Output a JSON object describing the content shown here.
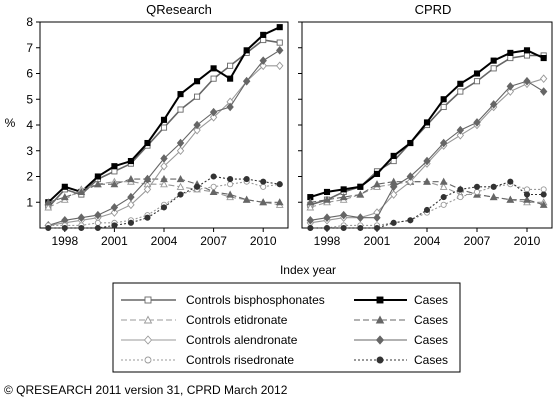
{
  "figure": {
    "ylabel": "%",
    "xlabel": "Index year",
    "copyright": "© QRESEARCH 2011 version 31, CPRD March 2012"
  },
  "legend": [
    {
      "key": "bis",
      "control": "Controls bisphosphonates",
      "case": "Cases"
    },
    {
      "key": "eti",
      "control": "Controls etidronate",
      "case": "Cases"
    },
    {
      "key": "alen",
      "control": "Controls alendronate",
      "case": "Cases"
    },
    {
      "key": "ris",
      "control": "Controls risedronate",
      "case": "Cases"
    }
  ],
  "series_styles": {
    "bis_control": {
      "color": "#666666",
      "dash": "",
      "marker": "square",
      "fill": "#ffffff"
    },
    "bis_case": {
      "color": "#000000",
      "dash": "",
      "marker": "square",
      "fill": "#000000"
    },
    "eti_control": {
      "color": "#999999",
      "dash": "6,3",
      "marker": "triangle",
      "fill": "#ffffff"
    },
    "eti_case": {
      "color": "#666666",
      "dash": "6,3",
      "marker": "triangle",
      "fill": "#666666"
    },
    "alen_control": {
      "color": "#999999",
      "dash": "",
      "marker": "diamond",
      "fill": "#ffffff"
    },
    "alen_case": {
      "color": "#666666",
      "dash": "",
      "marker": "diamond",
      "fill": "#666666"
    },
    "ris_control": {
      "color": "#999999",
      "dash": "2,2",
      "marker": "circle",
      "fill": "#ffffff"
    },
    "ris_case": {
      "color": "#333333",
      "dash": "2,2",
      "marker": "circle",
      "fill": "#333333"
    }
  },
  "chart_data": [
    {
      "type": "line",
      "title": "QResearch",
      "xlabel": "Index year",
      "ylabel": "%",
      "xlim": [
        1996.5,
        2011.5
      ],
      "ylim": [
        0,
        8
      ],
      "xticks": [
        1998,
        2001,
        2004,
        2007,
        2010
      ],
      "yticks": [
        1,
        2,
        3,
        4,
        5,
        6,
        7,
        8
      ],
      "x": [
        1997,
        1998,
        1999,
        2000,
        2001,
        2002,
        2003,
        2004,
        2005,
        2006,
        2007,
        2008,
        2009,
        2010,
        2011
      ],
      "series": [
        {
          "key": "bis_control",
          "values": [
            0.8,
            1.5,
            1.3,
            1.9,
            2.2,
            2.5,
            3.2,
            3.9,
            4.6,
            5.1,
            5.8,
            6.3,
            6.8,
            7.3,
            7.2
          ]
        },
        {
          "key": "bis_case",
          "values": [
            1.0,
            1.6,
            1.4,
            2.0,
            2.4,
            2.6,
            3.3,
            4.2,
            5.2,
            5.7,
            6.2,
            5.8,
            6.9,
            7.5,
            7.8
          ]
        },
        {
          "key": "eti_control",
          "values": [
            0.8,
            1.1,
            1.5,
            1.7,
            1.8,
            1.8,
            1.7,
            1.7,
            1.6,
            1.5,
            1.4,
            1.2,
            1.1,
            1.0,
            0.9
          ]
        },
        {
          "key": "eti_case",
          "values": [
            1.0,
            1.2,
            1.4,
            1.7,
            1.7,
            1.9,
            1.9,
            1.9,
            1.9,
            1.7,
            1.4,
            1.3,
            1.1,
            1.0,
            1.0
          ]
        },
        {
          "key": "alen_control",
          "values": [
            0.1,
            0.2,
            0.3,
            0.4,
            0.6,
            0.9,
            1.5,
            2.4,
            3.0,
            3.8,
            4.3,
            4.9,
            5.7,
            6.3,
            6.3
          ]
        },
        {
          "key": "alen_case",
          "values": [
            0.1,
            0.3,
            0.4,
            0.5,
            0.8,
            1.2,
            1.9,
            2.7,
            3.3,
            4.0,
            4.5,
            4.7,
            5.7,
            6.5,
            6.9
          ]
        },
        {
          "key": "ris_control",
          "values": [
            0.1,
            0.1,
            0.1,
            0.2,
            0.2,
            0.3,
            0.5,
            0.9,
            1.3,
            1.5,
            1.6,
            1.7,
            1.8,
            1.6,
            1.7
          ]
        },
        {
          "key": "ris_case",
          "values": [
            0.0,
            0.0,
            0.0,
            0.0,
            0.1,
            0.2,
            0.4,
            0.8,
            1.3,
            1.6,
            2.0,
            1.9,
            1.9,
            1.8,
            1.7
          ]
        }
      ]
    },
    {
      "type": "line",
      "title": "CPRD",
      "xlabel": "Index year",
      "ylabel": "%",
      "xlim": [
        1996.5,
        2011.5
      ],
      "ylim": [
        0,
        8
      ],
      "xticks": [
        1998,
        2001,
        2004,
        2007,
        2010
      ],
      "yticks": [
        1,
        2,
        3,
        4,
        5,
        6,
        7,
        8
      ],
      "x": [
        1997,
        1998,
        1999,
        2000,
        2001,
        2002,
        2003,
        2004,
        2005,
        2006,
        2007,
        2008,
        2009,
        2010,
        2011
      ],
      "series": [
        {
          "key": "bis_control",
          "values": [
            0.9,
            1.1,
            1.4,
            1.6,
            2.2,
            2.6,
            3.3,
            4.0,
            4.7,
            5.3,
            5.7,
            6.2,
            6.6,
            6.7,
            6.7
          ]
        },
        {
          "key": "bis_case",
          "values": [
            1.2,
            1.4,
            1.5,
            1.6,
            2.1,
            2.8,
            3.3,
            4.1,
            5.0,
            5.6,
            6.0,
            6.5,
            6.8,
            6.9,
            6.6
          ]
        },
        {
          "key": "eti_control",
          "values": [
            0.8,
            1.0,
            1.1,
            1.3,
            1.6,
            1.7,
            1.8,
            1.8,
            1.6,
            1.3,
            1.3,
            1.2,
            1.1,
            1.0,
            1.0
          ]
        },
        {
          "key": "eti_case",
          "values": [
            1.0,
            1.1,
            1.2,
            1.3,
            1.7,
            1.8,
            1.8,
            1.8,
            1.8,
            1.5,
            1.3,
            1.2,
            1.1,
            1.1,
            0.9
          ]
        },
        {
          "key": "alen_control",
          "values": [
            0.2,
            0.3,
            0.4,
            0.4,
            0.6,
            1.3,
            1.8,
            2.5,
            3.2,
            3.6,
            4.0,
            4.7,
            5.3,
            5.6,
            5.8
          ]
        },
        {
          "key": "alen_case",
          "values": [
            0.3,
            0.4,
            0.5,
            0.4,
            0.4,
            1.6,
            2.0,
            2.6,
            3.3,
            3.8,
            4.1,
            4.8,
            5.5,
            5.7,
            5.3
          ]
        },
        {
          "key": "ris_control",
          "values": [
            0.0,
            0.0,
            0.1,
            0.1,
            0.1,
            0.2,
            0.3,
            0.6,
            0.9,
            1.2,
            1.4,
            1.6,
            1.7,
            1.5,
            1.5
          ]
        },
        {
          "key": "ris_case",
          "values": [
            0.0,
            0.0,
            0.0,
            0.0,
            0.0,
            0.2,
            0.3,
            0.7,
            1.2,
            1.5,
            1.6,
            1.6,
            1.8,
            1.3,
            1.3
          ]
        }
      ]
    }
  ]
}
